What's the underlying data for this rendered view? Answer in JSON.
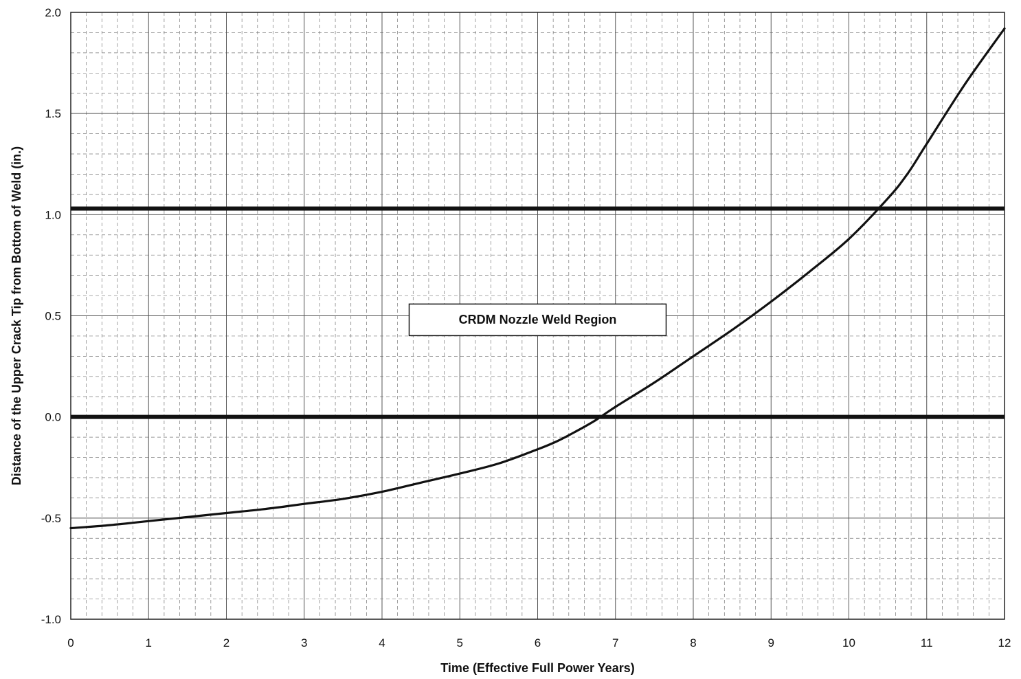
{
  "chart_data": {
    "type": "line",
    "title": "",
    "xlabel": "Time (Effective Full Power Years)",
    "ylabel": "Distance of the Upper Crack Tip from Bottom of Weld (in.)",
    "xlim": [
      0,
      12
    ],
    "ylim": [
      -1.0,
      2.0
    ],
    "x_ticks": [
      "0",
      "1",
      "2",
      "3",
      "4",
      "5",
      "6",
      "7",
      "8",
      "9",
      "10",
      "11",
      "12"
    ],
    "y_ticks": [
      "-1.0",
      "-0.5",
      "0.0",
      "0.5",
      "1.0",
      "1.5",
      "2.0"
    ],
    "x_tick_values": [
      0,
      1,
      2,
      3,
      4,
      5,
      6,
      7,
      8,
      9,
      10,
      11,
      12
    ],
    "y_tick_values": [
      -1.0,
      -0.5,
      0.0,
      0.5,
      1.0,
      1.5,
      2.0
    ],
    "grid": true,
    "minor_grid": true,
    "legend": "none",
    "series": [
      {
        "x": [
          0,
          0.5,
          1,
          1.5,
          2,
          2.5,
          3,
          3.5,
          4,
          4.5,
          5,
          5.5,
          6,
          6.25,
          6.5,
          6.75,
          7,
          7.5,
          8,
          8.5,
          9,
          9.5,
          10,
          10.5,
          10.75,
          11,
          11.5,
          12
        ],
        "y": [
          -0.55,
          -0.535,
          -0.515,
          -0.495,
          -0.475,
          -0.455,
          -0.43,
          -0.405,
          -0.37,
          -0.325,
          -0.28,
          -0.23,
          -0.16,
          -0.12,
          -0.07,
          -0.015,
          0.05,
          0.17,
          0.3,
          0.43,
          0.57,
          0.72,
          0.88,
          1.08,
          1.2,
          1.35,
          1.65,
          1.92
        ]
      }
    ],
    "reference_lines": [
      {
        "axis": "y",
        "value": 0.0
      },
      {
        "axis": "y",
        "value": 1.03
      }
    ],
    "annotations": [
      {
        "text": "CRDM Nozzle Weld Region",
        "x": 6.0,
        "y": 0.48
      }
    ],
    "line_color": "#111111",
    "grid_color": "#777777"
  }
}
